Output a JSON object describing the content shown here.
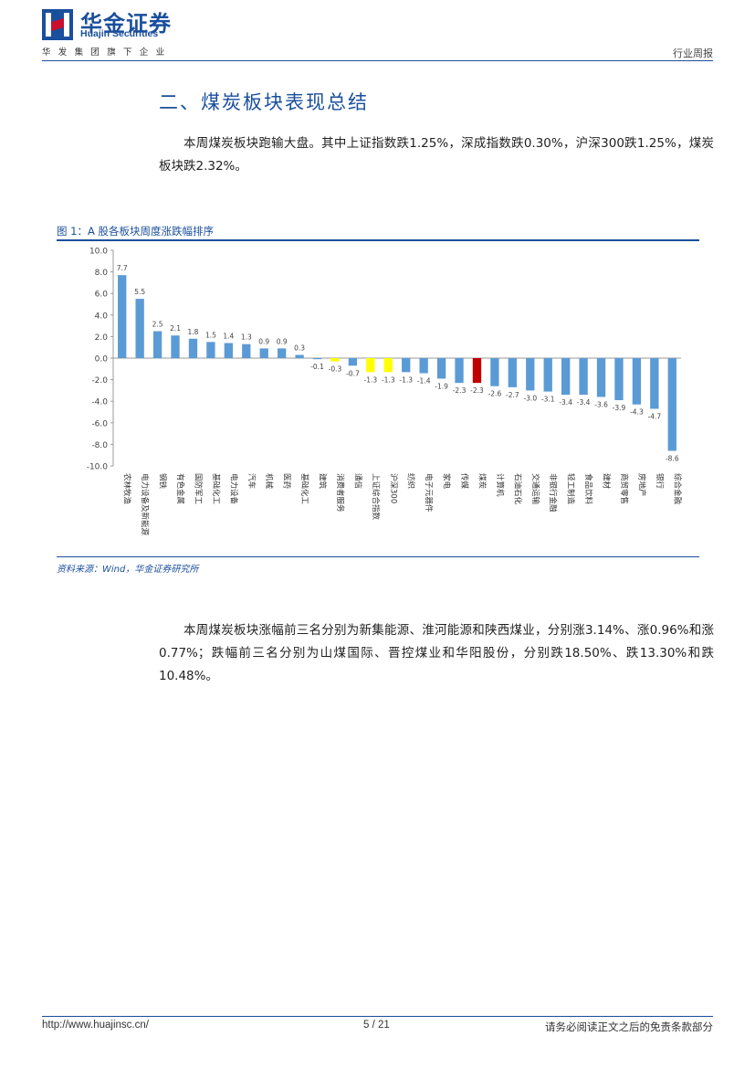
{
  "header": {
    "logo_cn": "华金证券",
    "logo_en": "Huajin Securities",
    "logo_sub": "华发集团旗下企业",
    "report_type": "行业周报"
  },
  "section": {
    "title": "二、煤炭板块表现总结"
  },
  "paragraphs": {
    "p1": "本周煤炭板块跑输大盘。其中上证指数跌1.25%，深成指数跌0.30%，沪深300跌1.25%，煤炭板块跌2.32%。",
    "p2": "本周煤炭板块涨幅前三名分别为新集能源、淮河能源和陕西煤业，分别涨3.14%、涨0.96%和涨0.77%；跌幅前三名分别为山煤国际、晋控煤业和华阳股份，分别跌18.50%、跌13.30%和跌10.48%。"
  },
  "figure": {
    "caption": "图 1：A 股各板块周度涨跌幅排序",
    "source": "资料来源：Wind，华金证券研究所"
  },
  "chart_data": {
    "type": "bar",
    "title": "",
    "xlabel": "",
    "ylabel": "",
    "ylim": [
      -10,
      10
    ],
    "yticks": [
      "10.0",
      "8.0",
      "6.0",
      "4.0",
      "2.0",
      "0.0",
      "-2.0",
      "-4.0",
      "-6.0",
      "-8.0",
      "-10.0"
    ],
    "categories": [
      "农林牧渔",
      "电力设备及新能源",
      "钢铁",
      "有色金属",
      "国防军工",
      "基础化工",
      "电力设备",
      "汽车",
      "机械",
      "医药",
      "基础化工",
      "建筑",
      "消费者服务",
      "通信",
      "上证综合指数",
      "沪深300",
      "纺织",
      "电子元器件",
      "家电",
      "传媒",
      "煤炭",
      "计算机",
      "石油石化",
      "交通运输",
      "非银行金融",
      "轻工制造",
      "食品饮料",
      "建材",
      "商贸零售",
      "房地产",
      "银行",
      "综合金融"
    ],
    "values": [
      7.7,
      5.5,
      2.5,
      2.1,
      1.8,
      1.5,
      1.4,
      1.3,
      0.9,
      0.9,
      0.3,
      -0.1,
      -0.3,
      -0.7,
      -1.3,
      -1.3,
      -1.3,
      -1.4,
      -1.9,
      -2.3,
      -2.3,
      -2.6,
      -2.7,
      -3.0,
      -3.1,
      -3.4,
      -3.4,
      -3.6,
      -3.9,
      -4.3,
      -4.7,
      -8.6
    ],
    "value_labels": [
      "7.7",
      "5.5",
      "2.5",
      "2.1",
      "1.8",
      "1.5",
      "1.4",
      "1.3",
      "0.9",
      "0.9",
      "0.3",
      "-0.1",
      "-0.3",
      "-0.7",
      "-1.3",
      "-1.3",
      "-1.3",
      "-1.4",
      "-1.9",
      "-2.3",
      "-2.3",
      "-2.6",
      "-2.7",
      "-3.0",
      "-3.1",
      "-3.4",
      "-3.4",
      "-3.6",
      "-3.9",
      "-4.3",
      "-4.7",
      "-8.6"
    ],
    "colors": [
      "#5b9bd5",
      "#5b9bd5",
      "#5b9bd5",
      "#5b9bd5",
      "#5b9bd5",
      "#5b9bd5",
      "#5b9bd5",
      "#5b9bd5",
      "#5b9bd5",
      "#5b9bd5",
      "#5b9bd5",
      "#5b9bd5",
      "#ffff00",
      "#5b9bd5",
      "#ffff00",
      "#ffff00",
      "#5b9bd5",
      "#5b9bd5",
      "#5b9bd5",
      "#5b9bd5",
      "#c00000",
      "#5b9bd5",
      "#5b9bd5",
      "#5b9bd5",
      "#5b9bd5",
      "#5b9bd5",
      "#5b9bd5",
      "#5b9bd5",
      "#5b9bd5",
      "#5b9bd5",
      "#5b9bd5",
      "#5b9bd5"
    ],
    "grid": false,
    "legend": "none"
  },
  "footer": {
    "url": "http://www.huajinsc.cn/",
    "page": "5 / 21",
    "disclaimer": "请务必阅读正文之后的免责条款部分"
  },
  "colors": {
    "brand_blue": "#1a4f9c",
    "brand_red": "#c8102e",
    "bar_default": "#5b9bd5",
    "bar_index": "#ffff00",
    "bar_coal": "#c00000"
  }
}
